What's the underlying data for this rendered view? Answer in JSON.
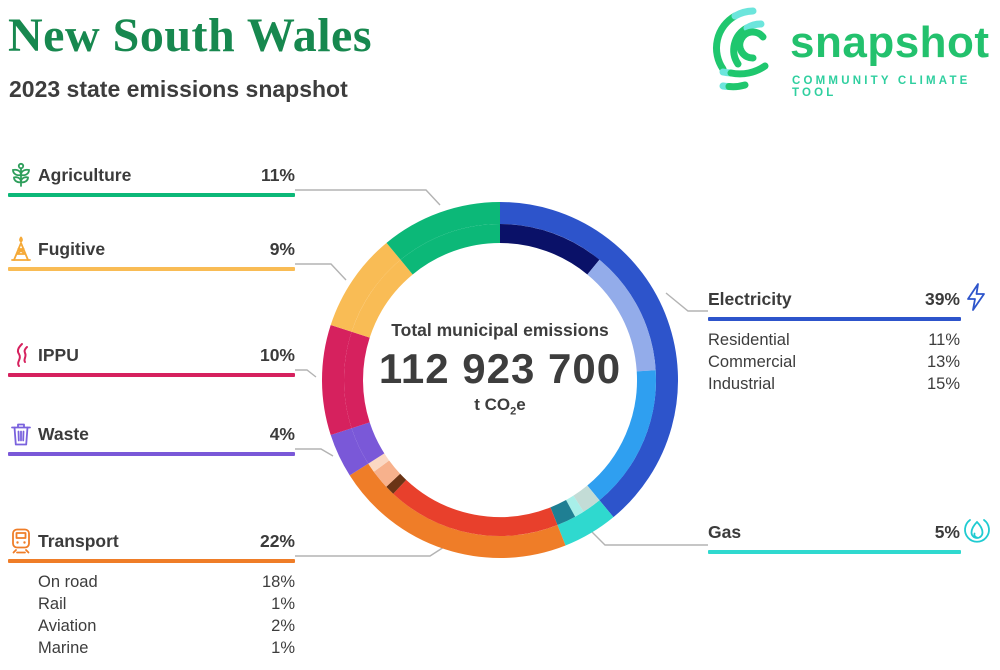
{
  "header": {
    "title": "New South Wales",
    "subtitle": "2023 state emissions snapshot"
  },
  "logo": {
    "wordmark": "snapshot",
    "tagline": "COMMUNITY CLIMATE TOOL",
    "green": "#23c16d",
    "teal": "#6ce5dc"
  },
  "center": {
    "label": "Total municipal emissions",
    "total": "112 923 700",
    "unit_prefix": "t CO",
    "unit_sub": "2",
    "unit_suffix": "e"
  },
  "chart_data": {
    "type": "donut",
    "title": "Total municipal emissions",
    "total_label": "112 923 700 t CO2e",
    "start_angle_deg": 0,
    "direction": "clockwise",
    "segments": [
      {
        "name": "Electricity",
        "pct": 39,
        "color": "#2d54cb",
        "subs": [
          {
            "name": "Residential",
            "pct": 11,
            "color": "#0a1168"
          },
          {
            "name": "Commercial",
            "pct": 13,
            "color": "#93acea"
          },
          {
            "name": "Industrial",
            "pct": 15,
            "color": "#2f9ff0"
          }
        ]
      },
      {
        "name": "Gas",
        "pct": 5,
        "color": "#2fd9cf",
        "subs": [
          {
            "name": "",
            "pct": 2,
            "color": "#c3dcd6"
          },
          {
            "name": "",
            "pct": 1,
            "color": "#a8efe9"
          },
          {
            "name": "",
            "pct": 2,
            "color": "#1f7f93"
          }
        ]
      },
      {
        "name": "Transport",
        "pct": 22,
        "color": "#ef7d28",
        "subs": [
          {
            "name": "On road",
            "pct": 18,
            "color": "#e8402c"
          },
          {
            "name": "Rail",
            "pct": 1,
            "color": "#6b3415"
          },
          {
            "name": "Aviation",
            "pct": 2,
            "color": "#f7b18c"
          },
          {
            "name": "Marine",
            "pct": 1,
            "color": "#fbd8c3"
          }
        ]
      },
      {
        "name": "Waste",
        "pct": 4,
        "color": "#7a58d8"
      },
      {
        "name": "IPPU",
        "pct": 10,
        "color": "#d6215e"
      },
      {
        "name": "Fugitive",
        "pct": 9,
        "color": "#f9bc55"
      },
      {
        "name": "Agriculture",
        "pct": 11,
        "color": "#0cb878"
      }
    ]
  },
  "legend_left": {
    "items": [
      {
        "label": "Agriculture",
        "value": "11%",
        "color": "#0cb878"
      },
      {
        "label": "Fugitive",
        "value": "9%",
        "color": "#f9bc55"
      },
      {
        "label": "IPPU",
        "value": "10%",
        "color": "#d6215e"
      },
      {
        "label": "Waste",
        "value": "4%",
        "color": "#7a58d8"
      },
      {
        "label": "Transport",
        "value": "22%",
        "color": "#ef7d28",
        "subs": [
          {
            "label": "On road",
            "value": "18%"
          },
          {
            "label": "Rail",
            "value": "1%"
          },
          {
            "label": "Aviation",
            "value": "2%"
          },
          {
            "label": "Marine",
            "value": "1%"
          }
        ]
      }
    ]
  },
  "legend_right": {
    "items": [
      {
        "label": "Electricity",
        "value": "39%",
        "color": "#2d54cb",
        "subs": [
          {
            "label": "Residential",
            "value": "11%"
          },
          {
            "label": "Commercial",
            "value": "13%"
          },
          {
            "label": "Industrial",
            "value": "15%"
          }
        ]
      },
      {
        "label": "Gas",
        "value": "5%",
        "color": "#2fd9cf"
      }
    ]
  }
}
